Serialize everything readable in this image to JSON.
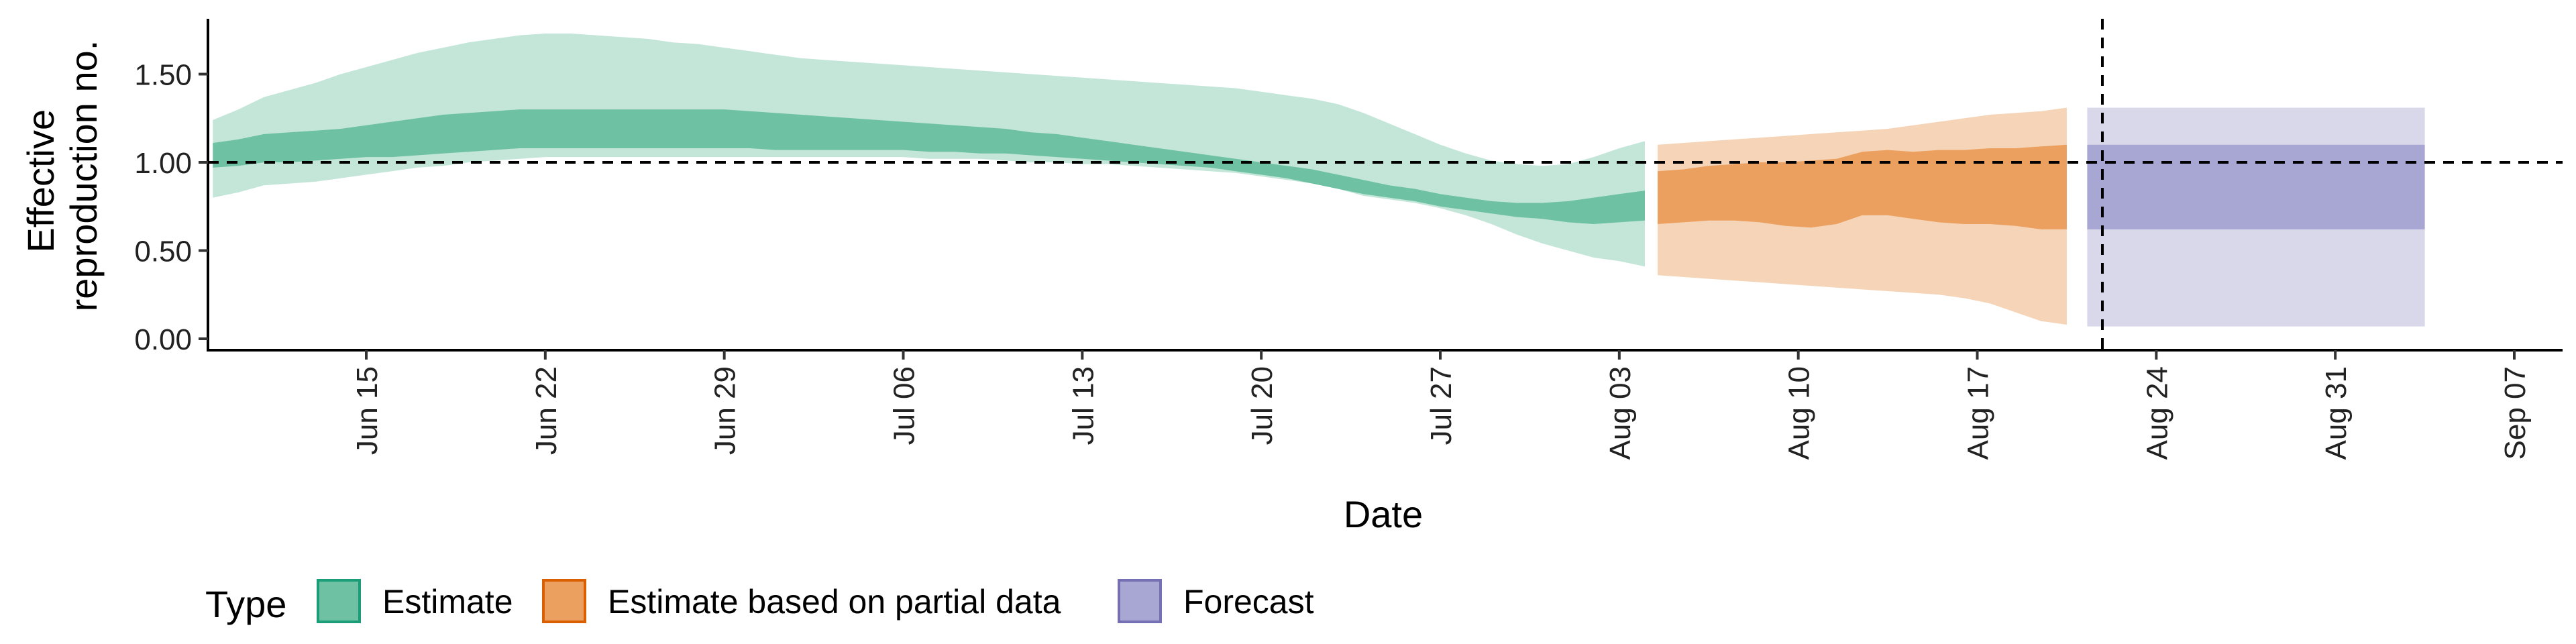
{
  "chart_data": {
    "type": "area",
    "title": "",
    "xlabel": "Date",
    "ylabel": [
      "Effective",
      "reproduction no."
    ],
    "ylim": [
      0,
      1.8
    ],
    "y_ticks": [
      0.0,
      0.5,
      1.0,
      1.5
    ],
    "y_tick_labels": [
      "0.00",
      "0.50",
      "1.00",
      "1.50"
    ],
    "x_range_days": [
      0,
      88
    ],
    "x_day0": "Jun 09",
    "x_ticks": [
      {
        "day": 6,
        "label": "Jun 15"
      },
      {
        "day": 13,
        "label": "Jun 22"
      },
      {
        "day": 20,
        "label": "Jun 29"
      },
      {
        "day": 27,
        "label": "Jul 06"
      },
      {
        "day": 34,
        "label": "Jul 13"
      },
      {
        "day": 41,
        "label": "Jul 20"
      },
      {
        "day": 48,
        "label": "Jul 27"
      },
      {
        "day": 55,
        "label": "Aug 03"
      },
      {
        "day": 62,
        "label": "Aug 10"
      },
      {
        "day": 69,
        "label": "Aug 17"
      },
      {
        "day": 76,
        "label": "Aug 24"
      },
      {
        "day": 83,
        "label": "Aug 31"
      },
      {
        "day": 90,
        "label": "Sep 07"
      }
    ],
    "reference_line_y": 1.0,
    "forecast_start_day": 72.5,
    "series": [
      {
        "name": "Estimate",
        "color": "#1b9e77",
        "days": [
          0,
          1,
          2,
          3,
          4,
          5,
          6,
          7,
          8,
          9,
          10,
          11,
          12,
          13,
          14,
          15,
          16,
          17,
          18,
          19,
          20,
          21,
          22,
          23,
          24,
          25,
          26,
          27,
          28,
          29,
          30,
          31,
          32,
          33,
          34,
          35,
          36,
          37,
          38,
          39,
          40,
          41,
          42,
          43,
          44,
          45,
          46,
          47,
          48,
          49,
          50,
          51,
          52,
          53,
          54,
          55,
          56
        ],
        "lower90": [
          0.8,
          0.83,
          0.87,
          0.88,
          0.89,
          0.91,
          0.93,
          0.95,
          0.97,
          0.98,
          1.0,
          1.01,
          1.02,
          1.03,
          1.03,
          1.03,
          1.03,
          1.03,
          1.03,
          1.03,
          1.03,
          1.03,
          1.03,
          1.03,
          1.03,
          1.03,
          1.03,
          1.03,
          1.02,
          1.02,
          1.02,
          1.01,
          1.0,
          1.0,
          0.99,
          0.99,
          0.98,
          0.97,
          0.96,
          0.95,
          0.94,
          0.92,
          0.9,
          0.88,
          0.85,
          0.81,
          0.79,
          0.77,
          0.74,
          0.7,
          0.65,
          0.59,
          0.54,
          0.5,
          0.46,
          0.44,
          0.41
        ],
        "upper90": [
          1.24,
          1.3,
          1.37,
          1.41,
          1.45,
          1.5,
          1.54,
          1.58,
          1.62,
          1.65,
          1.68,
          1.7,
          1.72,
          1.73,
          1.73,
          1.72,
          1.71,
          1.7,
          1.68,
          1.67,
          1.65,
          1.63,
          1.61,
          1.59,
          1.58,
          1.57,
          1.56,
          1.55,
          1.54,
          1.53,
          1.52,
          1.51,
          1.5,
          1.49,
          1.48,
          1.47,
          1.46,
          1.45,
          1.44,
          1.43,
          1.42,
          1.4,
          1.38,
          1.36,
          1.33,
          1.28,
          1.22,
          1.16,
          1.1,
          1.05,
          1.01,
          0.99,
          0.98,
          0.99,
          1.03,
          1.08,
          1.12
        ],
        "lower50": [
          0.97,
          0.98,
          1.0,
          1.0,
          1.01,
          1.02,
          1.03,
          1.03,
          1.04,
          1.05,
          1.06,
          1.07,
          1.08,
          1.08,
          1.08,
          1.08,
          1.08,
          1.08,
          1.08,
          1.08,
          1.08,
          1.08,
          1.07,
          1.07,
          1.07,
          1.07,
          1.07,
          1.07,
          1.06,
          1.06,
          1.05,
          1.05,
          1.04,
          1.03,
          1.02,
          1.01,
          1.0,
          0.99,
          0.98,
          0.97,
          0.95,
          0.93,
          0.91,
          0.88,
          0.85,
          0.82,
          0.8,
          0.78,
          0.75,
          0.73,
          0.71,
          0.69,
          0.68,
          0.66,
          0.65,
          0.66,
          0.67
        ],
        "upper50": [
          1.11,
          1.13,
          1.16,
          1.17,
          1.18,
          1.19,
          1.21,
          1.23,
          1.25,
          1.27,
          1.28,
          1.29,
          1.3,
          1.3,
          1.3,
          1.3,
          1.3,
          1.3,
          1.3,
          1.3,
          1.3,
          1.29,
          1.28,
          1.27,
          1.26,
          1.25,
          1.24,
          1.23,
          1.22,
          1.21,
          1.2,
          1.19,
          1.17,
          1.16,
          1.14,
          1.12,
          1.1,
          1.08,
          1.06,
          1.04,
          1.02,
          1.0,
          0.98,
          0.96,
          0.93,
          0.9,
          0.87,
          0.85,
          0.82,
          0.8,
          0.78,
          0.77,
          0.77,
          0.78,
          0.8,
          0.82,
          0.84
        ]
      },
      {
        "name": "Estimate based on partial data",
        "color": "#d95f02",
        "days": [
          56.5,
          57.5,
          58.5,
          59.5,
          60.5,
          61.5,
          62.5,
          63.5,
          64.5,
          65.5,
          66.5,
          67.5,
          68.5,
          69.5,
          70.5,
          71.5,
          72.5
        ],
        "lower90": [
          0.36,
          0.35,
          0.34,
          0.33,
          0.32,
          0.31,
          0.3,
          0.29,
          0.28,
          0.27,
          0.26,
          0.25,
          0.23,
          0.2,
          0.15,
          0.1,
          0.08
        ],
        "upper90": [
          1.1,
          1.11,
          1.12,
          1.13,
          1.14,
          1.15,
          1.16,
          1.17,
          1.18,
          1.19,
          1.21,
          1.23,
          1.25,
          1.27,
          1.28,
          1.29,
          1.31
        ],
        "lower50": [
          0.65,
          0.66,
          0.67,
          0.67,
          0.66,
          0.64,
          0.63,
          0.65,
          0.7,
          0.7,
          0.68,
          0.66,
          0.65,
          0.65,
          0.64,
          0.62,
          0.62
        ],
        "upper50": [
          0.95,
          0.96,
          0.98,
          0.99,
          1.0,
          1.0,
          1.01,
          1.02,
          1.06,
          1.07,
          1.06,
          1.07,
          1.07,
          1.08,
          1.08,
          1.09,
          1.1
        ]
      },
      {
        "name": "Forecast",
        "color": "#7570b3",
        "days": [
          73.3,
          86.5
        ],
        "lower90": [
          0.07,
          0.07
        ],
        "upper90": [
          1.31,
          1.31
        ],
        "lower50": [
          0.62,
          0.62
        ],
        "upper50": [
          1.1,
          1.1
        ]
      }
    ],
    "legend": {
      "title": "Type",
      "position": "bottom",
      "entries": [
        {
          "label": "Estimate",
          "color": "#1b9e77",
          "fill": "#6ec2a3"
        },
        {
          "label": "Estimate based on partial data",
          "color": "#d95f02",
          "fill": "#eba060"
        },
        {
          "label": "Forecast",
          "color": "#7570b3",
          "fill": "#a8a6d3"
        }
      ]
    }
  }
}
